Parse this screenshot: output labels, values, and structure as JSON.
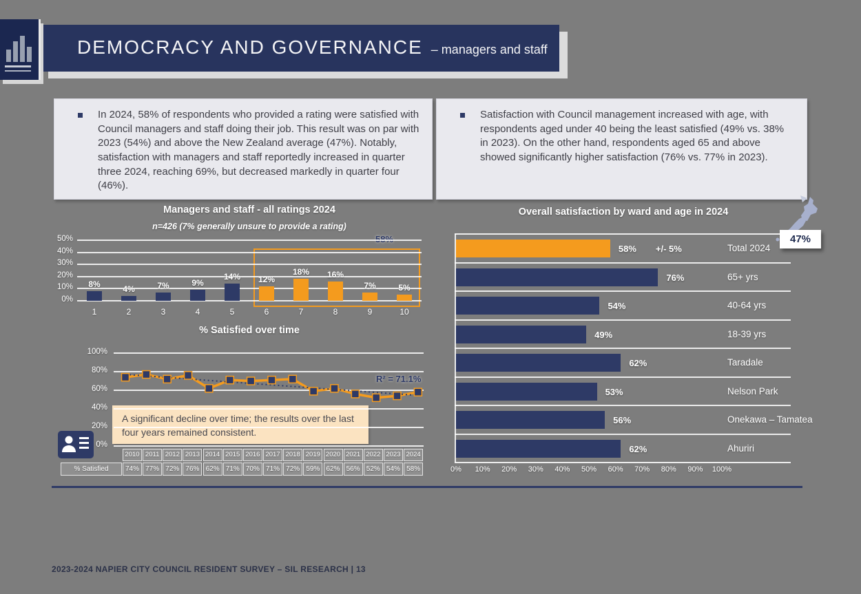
{
  "header": {
    "title": "DEMOCRACY AND GOVERNANCE",
    "subtitle": "– managers and staff"
  },
  "bullets": {
    "left": "In 2024, 58% of respondents who provided a rating were satisfied with Council managers and staff doing their job. This result was on par with 2023 (54%) and above the New Zealand average (47%). Notably, satisfaction with managers and staff reportedly increased in quarter three 2024, reaching 69%, but decreased markedly in quarter four (46%).",
    "right": "Satisfaction with Council management increased with age, with respondents aged under 40 being the least satisfied (49% vs. 38% in 2023). On the other hand, respondents aged 65 and above showed significantly higher satisfaction (76% vs. 77% in 2023)."
  },
  "chart_data": [
    {
      "type": "bar",
      "title": "Managers and staff - all ratings 2024",
      "subtitle": "n=426 (7% generally unsure to provide a rating)",
      "categories": [
        "1",
        "2",
        "3",
        "4",
        "5",
        "6",
        "7",
        "8",
        "9",
        "10"
      ],
      "values": [
        8,
        4,
        7,
        9,
        14,
        12,
        18,
        16,
        7,
        5
      ],
      "labels": [
        "8%",
        "4%",
        "7%",
        "9%",
        "14%",
        "12%",
        "18%",
        "16%",
        "7%",
        "5%"
      ],
      "ylim": [
        0,
        50
      ],
      "yticks": [
        "0%",
        "10%",
        "20%",
        "30%",
        "40%",
        "50%"
      ],
      "highlight": {
        "from": "6",
        "to": "10",
        "label": "58%"
      },
      "colors": {
        "default": "#2E3A66",
        "highlight": "#F49B1E"
      }
    },
    {
      "type": "line",
      "title": "% Satisfied over time",
      "x": [
        "2010",
        "2011",
        "2012",
        "2013",
        "2014",
        "2015",
        "2016",
        "2017",
        "2018",
        "2019",
        "2020",
        "2021",
        "2022",
        "2023",
        "2024"
      ],
      "values": [
        74,
        77,
        72,
        76,
        62,
        71,
        70,
        71,
        72,
        59,
        62,
        56,
        52,
        54,
        58
      ],
      "ylim": [
        0,
        100
      ],
      "yticks": [
        "0%",
        "20%",
        "40%",
        "60%",
        "80%",
        "100%"
      ],
      "r_squared": "R² = 71.1%",
      "trendline": true,
      "table_header": "% Satisfied",
      "table_values": [
        "74%",
        "77%",
        "72%",
        "76%",
        "62%",
        "71%",
        "70%",
        "71%",
        "72%",
        "59%",
        "62%",
        "56%",
        "52%",
        "54%",
        "58%"
      ],
      "annotation": "A significant decline over time; the results over the last four years remained consistent.",
      "colors": {
        "line": "#F49B1E",
        "marker": "#2E3A66"
      }
    },
    {
      "type": "bar",
      "orientation": "horizontal",
      "title": "Overall satisfaction by ward and age in 2024",
      "categories": [
        "Total 2024",
        "65+ yrs",
        "40-64 yrs",
        "18-39 yrs",
        "Taradale",
        "Nelson Park",
        "Onekawa – Tamatea",
        "Ahuriri"
      ],
      "values": [
        58,
        76,
        54,
        49,
        62,
        53,
        56,
        62
      ],
      "labels": [
        "58%",
        "76%",
        "54%",
        "49%",
        "62%",
        "53%",
        "56%",
        "62%"
      ],
      "moe_label": "+/- 5%",
      "xlim": [
        0,
        100
      ],
      "xticks": [
        "0%",
        "10%",
        "20%",
        "30%",
        "40%",
        "50%",
        "60%",
        "70%",
        "80%",
        "90%",
        "100%"
      ],
      "colors": {
        "first": "#F49B1E",
        "rest": "#2E3A66"
      }
    }
  ],
  "nz_average": {
    "label": "47%"
  },
  "footer": "2023-2024 NAPIER CITY COUNCIL RESIDENT SURVEY – SIL RESEARCH | 13"
}
